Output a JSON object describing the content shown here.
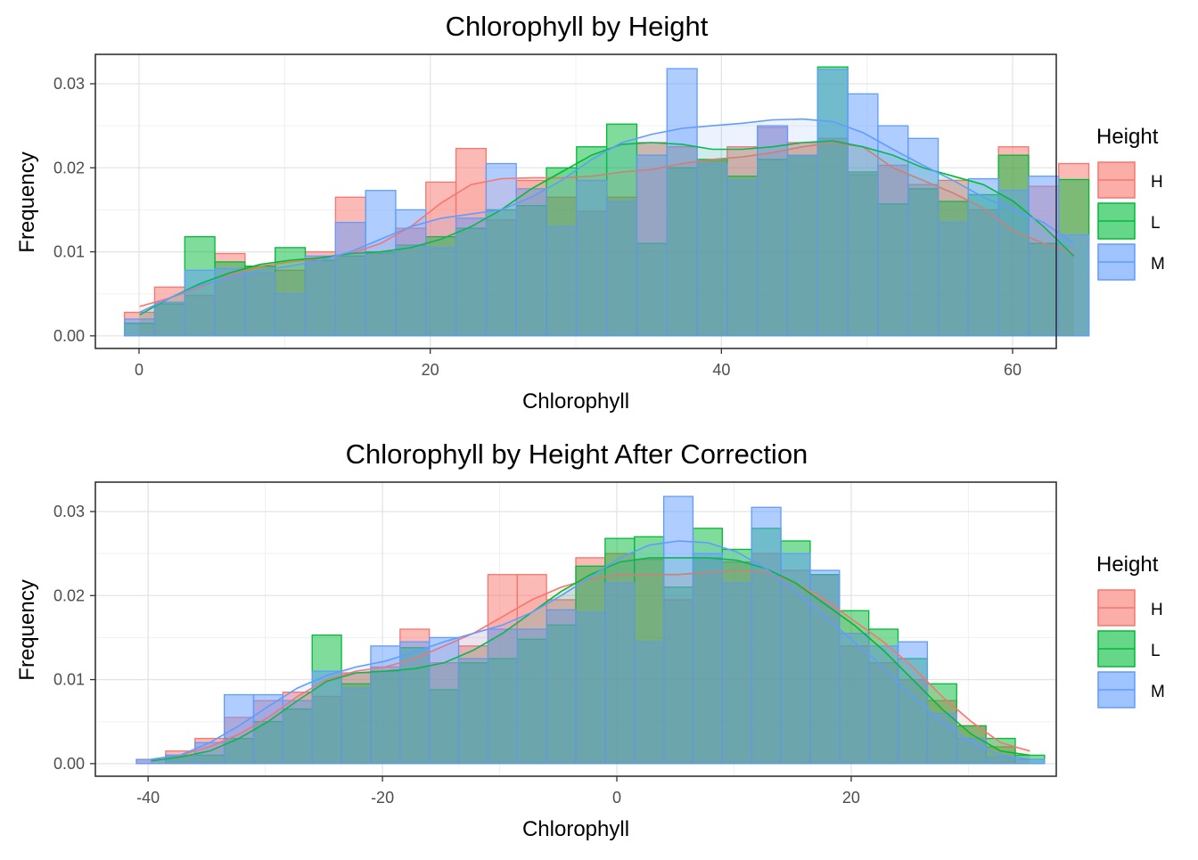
{
  "legend": {
    "title": "Height",
    "items": [
      {
        "label": "H",
        "color": "#F8766D"
      },
      {
        "label": "L",
        "color": "#00BA38"
      },
      {
        "label": "M",
        "color": "#619CFF"
      }
    ]
  },
  "chart_data": [
    {
      "type": "histogram",
      "title": "Chlorophyll by Height",
      "xlabel": "Chlorophyll",
      "ylabel": "Frequency",
      "xlim": [
        -3,
        63
      ],
      "ylim": [
        -0.0015,
        0.0335
      ],
      "xticks": [
        0,
        20,
        40,
        60
      ],
      "xtick_labels": [
        "0",
        "20",
        "40",
        "60"
      ],
      "yticks": [
        0,
        0.01,
        0.02,
        0.03
      ],
      "ytick_labels": [
        "0.00",
        "0.01",
        "0.02",
        "0.03"
      ],
      "grid": true,
      "legend_position": "right",
      "bin_start": -1,
      "bin_width": 2.07,
      "series": [
        {
          "name": "H",
          "values": [
            0.0028,
            0.0058,
            0.0048,
            0.0098,
            0.0083,
            0.0078,
            0.01,
            0.0165,
            0.0098,
            0.0128,
            0.0183,
            0.0223,
            0.0138,
            0.0185,
            0.0165,
            0.0148,
            0.0165,
            0.023,
            0.0225,
            0.0208,
            0.0225,
            0.0248,
            0.023,
            0.0235,
            0.0192,
            0.0203,
            0.018,
            0.0185,
            0.015,
            0.0225,
            0.0178,
            0.0205
          ],
          "density": [
            0.0035,
            0.0045,
            0.0058,
            0.0072,
            0.0083,
            0.0088,
            0.0092,
            0.0098,
            0.011,
            0.013,
            0.0158,
            0.018,
            0.0187,
            0.0188,
            0.0188,
            0.019,
            0.0195,
            0.0198,
            0.0205,
            0.021,
            0.0213,
            0.0218,
            0.0225,
            0.023,
            0.0225,
            0.02,
            0.0185,
            0.017,
            0.0152,
            0.0125,
            0.011,
            0.01
          ]
        },
        {
          "name": "L",
          "values": [
            0.0015,
            0.0038,
            0.0118,
            0.0088,
            0.0083,
            0.0105,
            0.009,
            0.0095,
            0.01,
            0.0108,
            0.0118,
            0.0128,
            0.015,
            0.0155,
            0.02,
            0.0225,
            0.0252,
            0.011,
            0.02,
            0.021,
            0.019,
            0.021,
            0.0215,
            0.032,
            0.0195,
            0.0157,
            0.0175,
            0.016,
            0.0168,
            0.0215,
            0.011,
            0.0186
          ],
          "density": [
            0.0025,
            0.0045,
            0.0062,
            0.0075,
            0.0085,
            0.009,
            0.0093,
            0.0098,
            0.01,
            0.0105,
            0.0115,
            0.013,
            0.015,
            0.0175,
            0.0195,
            0.0215,
            0.0228,
            0.023,
            0.0228,
            0.0222,
            0.0222,
            0.0225,
            0.023,
            0.0232,
            0.0225,
            0.0215,
            0.02,
            0.019,
            0.018,
            0.016,
            0.013,
            0.0095
          ]
        },
        {
          "name": "M",
          "values": [
            0.002,
            0.004,
            0.0078,
            0.008,
            0.0075,
            0.005,
            0.0095,
            0.0135,
            0.0173,
            0.015,
            0.0105,
            0.014,
            0.0205,
            0.0175,
            0.013,
            0.0185,
            0.016,
            0.0215,
            0.0318,
            0.0205,
            0.0185,
            0.025,
            0.0215,
            0.0317,
            0.0288,
            0.025,
            0.0235,
            0.0135,
            0.0187,
            0.0173,
            0.019,
            0.012
          ],
          "density": [
            0.0028,
            0.0045,
            0.006,
            0.007,
            0.0078,
            0.0083,
            0.009,
            0.01,
            0.0115,
            0.013,
            0.014,
            0.0145,
            0.015,
            0.0165,
            0.0185,
            0.021,
            0.023,
            0.024,
            0.0247,
            0.025,
            0.0253,
            0.0257,
            0.0258,
            0.0255,
            0.0242,
            0.0222,
            0.0203,
            0.0185,
            0.0165,
            0.015,
            0.0135,
            0.011
          ]
        }
      ]
    },
    {
      "type": "histogram",
      "title": "Chlorophyll by Height After Correction",
      "xlabel": "Chlorophyll",
      "ylabel": "Frequency",
      "xlim": [
        -44.5,
        37.5
      ],
      "ylim": [
        -0.0015,
        0.0335
      ],
      "xticks": [
        -40,
        -20,
        0,
        20
      ],
      "xtick_labels": [
        "-40",
        "-20",
        "0",
        "20"
      ],
      "yticks": [
        0,
        0.01,
        0.02,
        0.03
      ],
      "ytick_labels": [
        "0.00",
        "0.01",
        "0.02",
        "0.03"
      ],
      "grid": true,
      "legend_position": "right",
      "bin_start": -41.0,
      "bin_width": 2.5,
      "series": [
        {
          "name": "H",
          "values": [
            0.0005,
            0.0015,
            0.003,
            0.0055,
            0.0075,
            0.0085,
            0.008,
            0.0108,
            0.0115,
            0.016,
            0.012,
            0.014,
            0.0225,
            0.0225,
            0.0195,
            0.0245,
            0.025,
            0.0243,
            0.0195,
            0.0245,
            0.024,
            0.025,
            0.023,
            0.0225,
            0.014,
            0.012,
            0.01,
            0.0075,
            0.0045,
            0.002,
            0.0
          ],
          "density": [
            0.0005,
            0.001,
            0.002,
            0.0035,
            0.0055,
            0.008,
            0.01,
            0.011,
            0.0115,
            0.0125,
            0.014,
            0.0155,
            0.0175,
            0.0195,
            0.021,
            0.022,
            0.0225,
            0.0225,
            0.0225,
            0.0228,
            0.023,
            0.0228,
            0.0215,
            0.0195,
            0.017,
            0.0145,
            0.0115,
            0.008,
            0.005,
            0.0025,
            0.0015
          ]
        },
        {
          "name": "L",
          "values": [
            0.0,
            0.001,
            0.001,
            0.003,
            0.005,
            0.0065,
            0.0153,
            0.0095,
            0.011,
            0.0138,
            0.0088,
            0.012,
            0.0125,
            0.0148,
            0.0165,
            0.0235,
            0.0268,
            0.027,
            0.021,
            0.028,
            0.0255,
            0.028,
            0.0265,
            0.0225,
            0.0182,
            0.016,
            0.0125,
            0.0095,
            0.0045,
            0.003,
            0.001
          ],
          "density": [
            0.0003,
            0.0008,
            0.0015,
            0.003,
            0.005,
            0.0075,
            0.0098,
            0.0108,
            0.011,
            0.0113,
            0.012,
            0.0135,
            0.0155,
            0.018,
            0.0205,
            0.0225,
            0.024,
            0.0245,
            0.0245,
            0.0245,
            0.0242,
            0.0232,
            0.0215,
            0.019,
            0.0165,
            0.0135,
            0.01,
            0.0065,
            0.0035,
            0.0015,
            0.001
          ]
        },
        {
          "name": "M",
          "values": [
            0.0005,
            0.001,
            0.0025,
            0.0082,
            0.0082,
            0.0075,
            0.011,
            0.009,
            0.014,
            0.0145,
            0.015,
            0.0125,
            0.016,
            0.016,
            0.0183,
            0.018,
            0.0215,
            0.0145,
            0.0318,
            0.025,
            0.0215,
            0.0305,
            0.025,
            0.023,
            0.0155,
            0.014,
            0.0145,
            0.006,
            0.003,
            0.0008,
            0.0005
          ],
          "density": [
            0.0005,
            0.001,
            0.0025,
            0.0045,
            0.0068,
            0.009,
            0.0105,
            0.0115,
            0.0122,
            0.0133,
            0.0145,
            0.0155,
            0.0165,
            0.018,
            0.02,
            0.0222,
            0.0245,
            0.026,
            0.0265,
            0.0263,
            0.0252,
            0.0232,
            0.0205,
            0.0175,
            0.0145,
            0.0115,
            0.008,
            0.005,
            0.0025,
            0.001,
            0.0005
          ]
        }
      ]
    }
  ]
}
